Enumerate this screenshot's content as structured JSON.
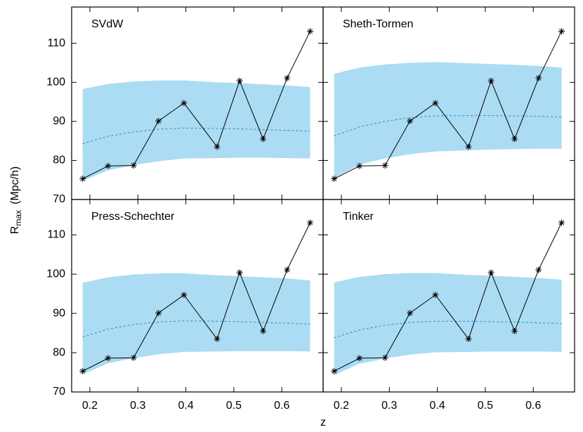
{
  "ylabel": "R",
  "ylabel_sub": "max",
  "ylabel_unit": "(Mpc/h)",
  "xlabel": "z",
  "chart_data": [
    {
      "type": "line",
      "title": "SVdW",
      "x": [
        0.185,
        0.238,
        0.291,
        0.343,
        0.396,
        0.465,
        0.512,
        0.561,
        0.611,
        0.659
      ],
      "series": [
        {
          "color": "#2a8ccf",
          "dashed": true,
          "values": [
            84.3,
            86.2,
            87.3,
            88.0,
            88.3,
            88.2,
            88.1,
            87.9,
            87.7,
            87.5
          ]
        },
        {
          "color": "#000000",
          "values": [
            75.3,
            78.6,
            78.7,
            90.1,
            94.7,
            83.5,
            100.4,
            85.5,
            101.1,
            113.1
          ]
        }
      ],
      "band": {
        "color": "#abdcf3",
        "lower": [
          74.8,
          77.5,
          78.8,
          79.8,
          80.5,
          80.6,
          80.7,
          80.7,
          80.6,
          80.5
        ],
        "upper": [
          98.3,
          99.6,
          100.2,
          100.5,
          100.5,
          100.0,
          99.8,
          99.5,
          99.2,
          98.8
        ]
      },
      "xlim": [
        0.162,
        0.686
      ],
      "ylim": [
        70,
        119.3
      ],
      "xticks": [
        0.2,
        0.3,
        0.4,
        0.5,
        0.6
      ],
      "yticks": [
        70,
        80,
        90,
        100,
        110
      ]
    },
    {
      "type": "line",
      "title": "Sheth-Tormen",
      "x": [
        0.185,
        0.238,
        0.291,
        0.343,
        0.396,
        0.465,
        0.512,
        0.561,
        0.611,
        0.659
      ],
      "series": [
        {
          "color": "#2a8ccf",
          "dashed": true,
          "values": [
            86.3,
            88.6,
            90.0,
            91.0,
            91.4,
            91.5,
            91.5,
            91.4,
            91.3,
            91.1
          ]
        },
        {
          "color": "#000000",
          "values": [
            75.3,
            78.6,
            78.7,
            90.1,
            94.7,
            83.5,
            100.4,
            85.5,
            101.1,
            113.1
          ]
        }
      ],
      "band": {
        "color": "#abdcf3",
        "lower": [
          75.5,
          79.0,
          80.5,
          81.6,
          82.3,
          82.6,
          82.8,
          82.9,
          83.0,
          83.0
        ],
        "upper": [
          102.2,
          103.8,
          104.6,
          105.0,
          105.2,
          104.9,
          104.7,
          104.5,
          104.2,
          103.8
        ]
      },
      "xlim": [
        0.162,
        0.686
      ],
      "ylim": [
        70,
        119.3
      ],
      "xticks": [
        0.2,
        0.3,
        0.4,
        0.5,
        0.6
      ],
      "yticks": [
        70,
        80,
        90,
        100,
        110
      ]
    },
    {
      "type": "line",
      "title": "Press-Schechter",
      "x": [
        0.185,
        0.238,
        0.291,
        0.343,
        0.396,
        0.465,
        0.512,
        0.561,
        0.611,
        0.659
      ],
      "series": [
        {
          "color": "#2a8ccf",
          "dashed": true,
          "values": [
            84.0,
            86.0,
            87.2,
            87.8,
            88.1,
            88.0,
            87.9,
            87.7,
            87.5,
            87.3
          ]
        },
        {
          "color": "#000000",
          "values": [
            75.3,
            78.6,
            78.7,
            90.1,
            94.7,
            83.5,
            100.4,
            85.5,
            101.1,
            113.1
          ]
        }
      ],
      "band": {
        "color": "#abdcf3",
        "lower": [
          74.5,
          77.3,
          78.6,
          79.6,
          80.2,
          80.3,
          80.4,
          80.4,
          80.4,
          80.3
        ],
        "upper": [
          97.8,
          99.2,
          99.9,
          100.2,
          100.2,
          99.7,
          99.5,
          99.2,
          98.9,
          98.4
        ]
      },
      "xlim": [
        0.162,
        0.686
      ],
      "ylim": [
        70,
        119.0
      ],
      "xticks": [
        0.2,
        0.3,
        0.4,
        0.5,
        0.6
      ],
      "yticks": [
        70,
        80,
        90,
        100,
        110
      ]
    },
    {
      "type": "line",
      "title": "Tinker",
      "x": [
        0.185,
        0.238,
        0.291,
        0.343,
        0.396,
        0.465,
        0.512,
        0.561,
        0.611,
        0.659
      ],
      "series": [
        {
          "color": "#2a8ccf",
          "dashed": true,
          "values": [
            83.8,
            85.8,
            87.0,
            87.7,
            88.0,
            88.0,
            87.9,
            87.8,
            87.6,
            87.4
          ]
        },
        {
          "color": "#000000",
          "values": [
            75.3,
            78.6,
            78.7,
            90.1,
            94.7,
            83.5,
            100.4,
            85.5,
            101.1,
            113.1
          ]
        }
      ],
      "band": {
        "color": "#abdcf3",
        "lower": [
          74.3,
          77.2,
          78.5,
          79.5,
          80.1,
          80.2,
          80.3,
          80.3,
          80.3,
          80.2
        ],
        "upper": [
          97.9,
          99.3,
          100.0,
          100.3,
          100.3,
          99.8,
          99.6,
          99.3,
          99.0,
          98.6
        ]
      },
      "xlim": [
        0.162,
        0.686
      ],
      "ylim": [
        70,
        119.0
      ],
      "xticks": [
        0.2,
        0.3,
        0.4,
        0.5,
        0.6
      ],
      "yticks": [
        70,
        80,
        90,
        100,
        110
      ]
    }
  ]
}
